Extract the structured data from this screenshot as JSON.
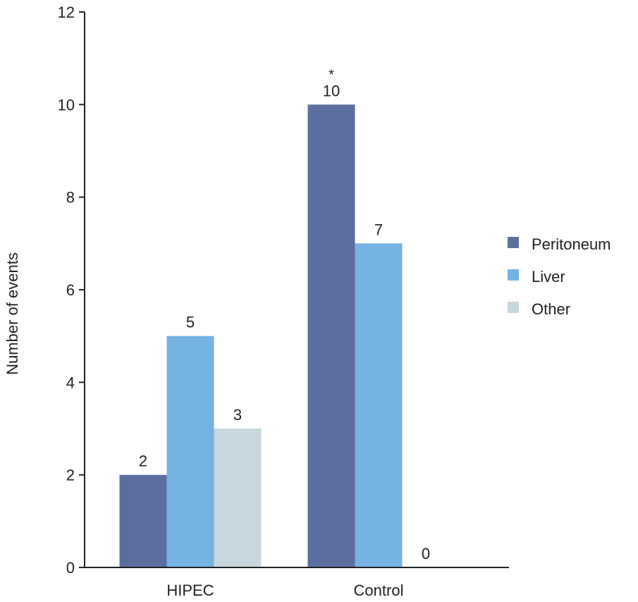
{
  "chart_data": {
    "type": "bar",
    "categories": [
      "HIPEC",
      "Control"
    ],
    "series": [
      {
        "name": "Peritoneum",
        "values": [
          2,
          10
        ],
        "color": "#5b6f9f"
      },
      {
        "name": "Liver",
        "values": [
          5,
          7
        ],
        "color": "#74b3e2"
      },
      {
        "name": "Other",
        "values": [
          3,
          0
        ],
        "color": "#c7d6dd"
      }
    ],
    "data_labels": [
      [
        "2",
        "10"
      ],
      [
        "5",
        "7"
      ],
      [
        "3",
        "0"
      ]
    ],
    "title": "",
    "xlabel": "",
    "ylabel": "Number of events",
    "ylim": [
      0,
      12
    ],
    "yticks": [
      0,
      2,
      4,
      6,
      8,
      10,
      12
    ],
    "grid": false,
    "legend_position": "right",
    "annotations": [
      {
        "text": "*",
        "category": "Control",
        "series": "Peritoneum"
      }
    ]
  }
}
